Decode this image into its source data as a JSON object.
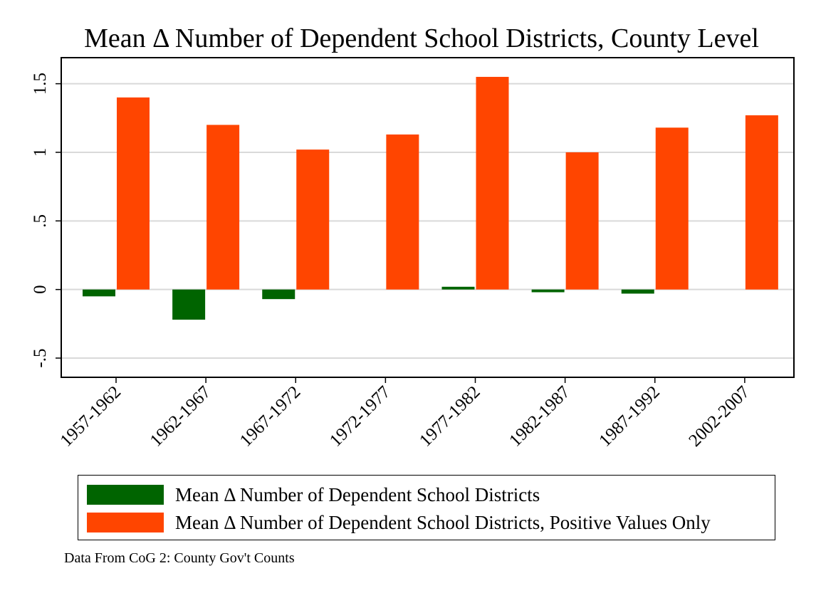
{
  "chart_data": {
    "type": "bar",
    "title": "Mean Δ Number of Dependent School Districts, County Level",
    "xlabel": "",
    "ylabel": "",
    "categories": [
      "1957-1962",
      "1962-1967",
      "1967-1972",
      "1972-1977",
      "1977-1982",
      "1982-1987",
      "1987-1992",
      "2002-2007"
    ],
    "series": [
      {
        "name": "Mean Δ Number of Dependent School Districts",
        "color": "#006400",
        "values": [
          -0.05,
          -0.22,
          -0.07,
          0,
          0.02,
          -0.02,
          -0.03,
          0
        ]
      },
      {
        "name": "Mean Δ Number of Dependent School Districts, Positive Values Only",
        "color": "#ff4500",
        "values": [
          1.4,
          1.2,
          1.02,
          1.13,
          1.55,
          1.0,
          1.18,
          1.27
        ]
      }
    ],
    "y_ticks": [
      {
        "value": -0.5,
        "label": "-.5"
      },
      {
        "value": 0,
        "label": "0"
      },
      {
        "value": 0.5,
        "label": ".5"
      },
      {
        "value": 1,
        "label": "1"
      },
      {
        "value": 1.5,
        "label": "1.5"
      }
    ],
    "ylim": [
      -0.64,
      1.69
    ],
    "grid": true,
    "legend_position": "bottom"
  },
  "note": "Data From CoG 2: County Gov't Counts"
}
